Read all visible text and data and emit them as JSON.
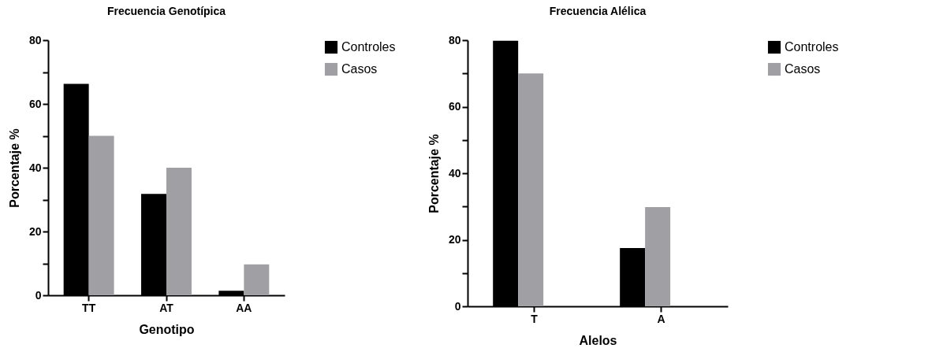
{
  "chart_data": [
    {
      "type": "bar",
      "title": "Frecuencia Genotípica",
      "xlabel": "Genotipo",
      "ylabel": "Porcentaje %",
      "categories": [
        "TT",
        "AT",
        "AA"
      ],
      "series": [
        {
          "name": "Controles",
          "color": "#000000",
          "values": [
            66.3,
            31.8,
            1.4
          ]
        },
        {
          "name": "Casos",
          "color": "#a0a0a4",
          "values": [
            50,
            40,
            9.7
          ]
        }
      ],
      "ylim": [
        0,
        80
      ],
      "yticks": [
        0,
        {
          "value": 10,
          "label": null
        },
        20,
        {
          "value": 30,
          "label": null
        },
        40,
        {
          "value": 50,
          "label": null
        },
        60,
        {
          "value": 70,
          "label": null
        },
        80
      ],
      "grid": false,
      "legend": "right"
    },
    {
      "type": "bar",
      "title": "Frecuencia Alélica",
      "xlabel": "Alelos",
      "ylabel": "Porcentaje %",
      "categories": [
        "T",
        "A"
      ],
      "series": [
        {
          "name": "Controles",
          "color": "#000000",
          "values": [
            79.8,
            17.5
          ]
        },
        {
          "name": "Casos",
          "color": "#a0a0a4",
          "values": [
            70,
            29.8
          ]
        }
      ],
      "ylim": [
        0,
        80
      ],
      "yticks": [
        0,
        {
          "value": 10,
          "label": null
        },
        20,
        {
          "value": 30,
          "label": null
        },
        40,
        {
          "value": 50,
          "label": null
        },
        60,
        {
          "value": 70,
          "label": null
        },
        80
      ],
      "grid": false,
      "legend": "right"
    }
  ]
}
